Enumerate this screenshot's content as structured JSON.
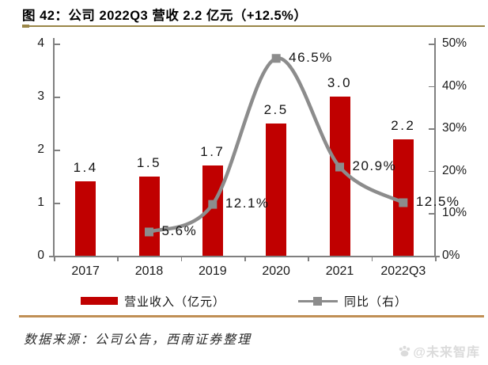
{
  "header": {
    "title": "图 42：公司 2022Q3 营收 2.2 亿元（+12.5%）"
  },
  "chart_data": {
    "type": "bar+line combo",
    "categories": [
      "2017",
      "2018",
      "2019",
      "2020",
      "2021",
      "2022Q3"
    ],
    "series": [
      {
        "name": "营业收入（亿元）",
        "type": "bar",
        "axis": "left",
        "values": [
          1.4,
          1.5,
          1.7,
          2.5,
          3.0,
          2.2
        ],
        "labels": [
          "1.4",
          "1.5",
          "1.7",
          "2.5",
          "3.0",
          "2.2"
        ]
      },
      {
        "name": "同比（右）",
        "type": "line",
        "axis": "right",
        "values": [
          null,
          5.6,
          12.1,
          46.5,
          20.9,
          12.5
        ],
        "labels": [
          "",
          "5.6%",
          "12.1%",
          "46.5%",
          "20.9%",
          "12.5%"
        ]
      }
    ],
    "left_axis": {
      "min": 0,
      "max": 4,
      "ticks": [
        "0",
        "1",
        "2",
        "3",
        "4"
      ]
    },
    "right_axis": {
      "min": 0,
      "max": 50,
      "ticks": [
        "0%",
        "10%",
        "20%",
        "30%",
        "40%",
        "50%"
      ]
    },
    "grid": false,
    "legend_position": "bottom",
    "title": "图 42：公司 2022Q3 营收 2.2 亿元（+12.5%）"
  },
  "legend": {
    "bar_label": "营业收入（亿元）",
    "line_label": "同比（右）"
  },
  "footer": {
    "source": "数据来源：公司公告，西南证券整理",
    "watermark": "@未来智库"
  },
  "colors": {
    "bar": "#C00000",
    "line": "#8C8C8C",
    "axis": "#808080",
    "rule_top": "#9A8648",
    "rule_bottom": "#C08F55",
    "watermark": "#DBDBDB",
    "text": "#1A1A1A"
  }
}
